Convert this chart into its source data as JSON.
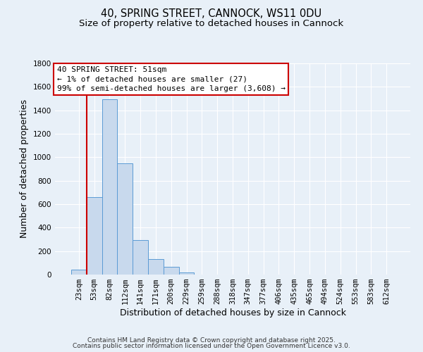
{
  "title_line1": "40, SPRING STREET, CANNOCK, WS11 0DU",
  "title_line2": "Size of property relative to detached houses in Cannock",
  "bar_labels": [
    "23sqm",
    "53sqm",
    "82sqm",
    "112sqm",
    "141sqm",
    "171sqm",
    "200sqm",
    "229sqm",
    "259sqm",
    "288sqm",
    "318sqm",
    "347sqm",
    "377sqm",
    "406sqm",
    "435sqm",
    "465sqm",
    "494sqm",
    "524sqm",
    "553sqm",
    "583sqm",
    "612sqm"
  ],
  "bar_values": [
    45,
    660,
    1495,
    950,
    295,
    135,
    65,
    20,
    3,
    0,
    0,
    0,
    0,
    0,
    0,
    0,
    0,
    0,
    0,
    0,
    0
  ],
  "bar_color": "#c8d9ed",
  "bar_edge_color": "#5b9bd5",
  "ylim": [
    0,
    1800
  ],
  "yticks": [
    0,
    200,
    400,
    600,
    800,
    1000,
    1200,
    1400,
    1600,
    1800
  ],
  "xlabel": "Distribution of detached houses by size in Cannock",
  "ylabel": "Number of detached properties",
  "vline_color": "#cc0000",
  "annotation_title": "40 SPRING STREET: 51sqm",
  "annotation_line1": "← 1% of detached houses are smaller (27)",
  "annotation_line2": "99% of semi-detached houses are larger (3,608) →",
  "annotation_box_color": "#ffffff",
  "annotation_box_edge": "#cc0000",
  "background_color": "#e8f0f8",
  "grid_color": "#ffffff",
  "footer_line1": "Contains HM Land Registry data © Crown copyright and database right 2025.",
  "footer_line2": "Contains public sector information licensed under the Open Government Licence v3.0.",
  "title_fontsize": 10.5,
  "subtitle_fontsize": 9.5,
  "axis_label_fontsize": 9,
  "tick_fontsize": 7.5,
  "annotation_fontsize": 8,
  "footer_fontsize": 6.5
}
